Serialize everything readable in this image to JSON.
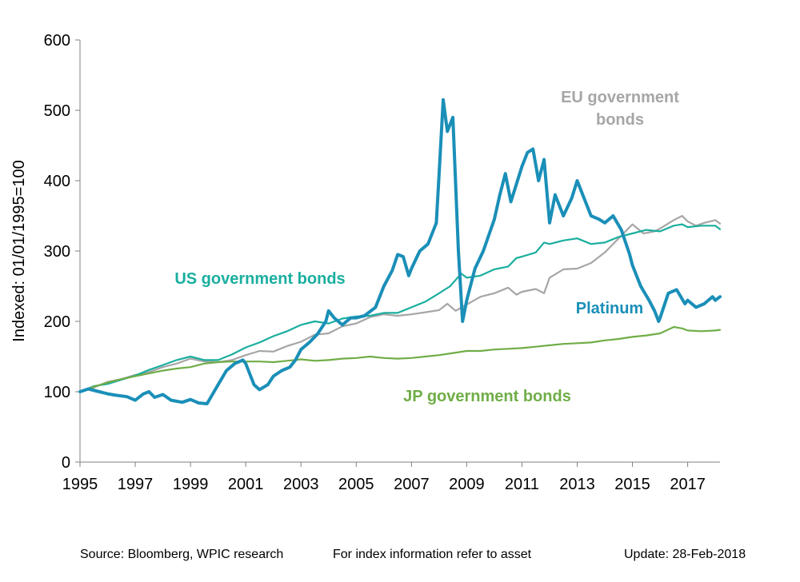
{
  "chart_data": {
    "type": "line",
    "ylabel": "Indexed: 01/01/1995=100",
    "xlabel": "",
    "ylim": [
      0,
      600
    ],
    "xlim": [
      1995,
      2018.17
    ],
    "yticks": [
      "0",
      "100",
      "200",
      "300",
      "400",
      "500",
      "600"
    ],
    "xticks": [
      "1995",
      "1997",
      "1999",
      "2001",
      "2003",
      "2005",
      "2007",
      "2009",
      "2011",
      "2013",
      "2015",
      "2017"
    ],
    "grid": false,
    "legend": "inline labels",
    "series": [
      {
        "name": "EU government bonds",
        "label_lines": [
          "EU government",
          "bonds"
        ],
        "color": "#A6A6A6",
        "points": [
          [
            1995,
            100
          ],
          [
            1995.5,
            106
          ],
          [
            1996,
            114
          ],
          [
            1996.5,
            118
          ],
          [
            1997,
            124
          ],
          [
            1997.5,
            128
          ],
          [
            1998,
            135
          ],
          [
            1998.5,
            140
          ],
          [
            1999,
            147
          ],
          [
            1999.5,
            143
          ],
          [
            2000,
            142
          ],
          [
            2000.5,
            145
          ],
          [
            2001,
            152
          ],
          [
            2001.5,
            158
          ],
          [
            2002,
            157
          ],
          [
            2002.5,
            165
          ],
          [
            2003,
            171
          ],
          [
            2003.5,
            181
          ],
          [
            2004,
            183
          ],
          [
            2004.5,
            193
          ],
          [
            2005,
            197
          ],
          [
            2005.5,
            206
          ],
          [
            2006,
            210
          ],
          [
            2006.5,
            208
          ],
          [
            2007,
            210
          ],
          [
            2007.5,
            213
          ],
          [
            2008,
            216
          ],
          [
            2008.3,
            225
          ],
          [
            2008.6,
            215
          ],
          [
            2009,
            224
          ],
          [
            2009.5,
            235
          ],
          [
            2010,
            240
          ],
          [
            2010.5,
            248
          ],
          [
            2010.8,
            238
          ],
          [
            2011,
            242
          ],
          [
            2011.5,
            246
          ],
          [
            2011.8,
            240
          ],
          [
            2012,
            262
          ],
          [
            2012.5,
            274
          ],
          [
            2013,
            275
          ],
          [
            2013.5,
            283
          ],
          [
            2014,
            298
          ],
          [
            2014.5,
            318
          ],
          [
            2015,
            338
          ],
          [
            2015.4,
            325
          ],
          [
            2015.8,
            328
          ],
          [
            2016,
            332
          ],
          [
            2016.5,
            344
          ],
          [
            2016.8,
            350
          ],
          [
            2017,
            342
          ],
          [
            2017.3,
            336
          ],
          [
            2017.6,
            340
          ],
          [
            2018,
            344
          ],
          [
            2018.17,
            339
          ]
        ]
      },
      {
        "name": "US government bonds",
        "label_lines": [
          "US government bonds"
        ],
        "color": "#1AAE9F",
        "points": [
          [
            1995,
            100
          ],
          [
            1995.5,
            108
          ],
          [
            1996,
            111
          ],
          [
            1996.5,
            117
          ],
          [
            1997,
            123
          ],
          [
            1997.5,
            131
          ],
          [
            1998,
            138
          ],
          [
            1998.5,
            145
          ],
          [
            1999,
            150
          ],
          [
            1999.5,
            145
          ],
          [
            2000,
            145
          ],
          [
            2000.5,
            153
          ],
          [
            2001,
            163
          ],
          [
            2001.5,
            170
          ],
          [
            2002,
            179
          ],
          [
            2002.5,
            186
          ],
          [
            2003,
            195
          ],
          [
            2003.5,
            200
          ],
          [
            2004,
            197
          ],
          [
            2004.5,
            204
          ],
          [
            2005,
            207
          ],
          [
            2005.5,
            208
          ],
          [
            2006,
            212
          ],
          [
            2006.5,
            212
          ],
          [
            2007,
            220
          ],
          [
            2007.5,
            228
          ],
          [
            2008,
            240
          ],
          [
            2008.4,
            250
          ],
          [
            2008.8,
            268
          ],
          [
            2009,
            262
          ],
          [
            2009.5,
            265
          ],
          [
            2010,
            274
          ],
          [
            2010.5,
            278
          ],
          [
            2010.8,
            290
          ],
          [
            2011,
            292
          ],
          [
            2011.5,
            298
          ],
          [
            2011.8,
            312
          ],
          [
            2012,
            310
          ],
          [
            2012.5,
            315
          ],
          [
            2013,
            318
          ],
          [
            2013.5,
            310
          ],
          [
            2014,
            312
          ],
          [
            2014.5,
            320
          ],
          [
            2015,
            325
          ],
          [
            2015.5,
            330
          ],
          [
            2016,
            328
          ],
          [
            2016.5,
            336
          ],
          [
            2016.8,
            338
          ],
          [
            2017,
            334
          ],
          [
            2017.5,
            336
          ],
          [
            2018,
            336
          ],
          [
            2018.17,
            331
          ]
        ]
      },
      {
        "name": "JP government bonds",
        "label_lines": [
          "JP government bonds"
        ],
        "color": "#70AD47",
        "points": [
          [
            1995,
            100
          ],
          [
            1995.5,
            107
          ],
          [
            1996,
            113
          ],
          [
            1996.5,
            118
          ],
          [
            1997,
            122
          ],
          [
            1997.5,
            126
          ],
          [
            1998,
            130
          ],
          [
            1998.5,
            133
          ],
          [
            1999,
            135
          ],
          [
            1999.5,
            140
          ],
          [
            2000,
            142
          ],
          [
            2000.5,
            143
          ],
          [
            2001,
            143
          ],
          [
            2001.5,
            143
          ],
          [
            2002,
            142
          ],
          [
            2002.5,
            144
          ],
          [
            2003,
            146
          ],
          [
            2003.5,
            144
          ],
          [
            2004,
            145
          ],
          [
            2004.5,
            147
          ],
          [
            2005,
            148
          ],
          [
            2005.5,
            150
          ],
          [
            2006,
            148
          ],
          [
            2006.5,
            147
          ],
          [
            2007,
            148
          ],
          [
            2007.5,
            150
          ],
          [
            2008,
            152
          ],
          [
            2008.5,
            155
          ],
          [
            2009,
            158
          ],
          [
            2009.5,
            158
          ],
          [
            2010,
            160
          ],
          [
            2010.5,
            161
          ],
          [
            2011,
            162
          ],
          [
            2011.5,
            164
          ],
          [
            2012,
            166
          ],
          [
            2012.5,
            168
          ],
          [
            2013,
            169
          ],
          [
            2013.5,
            170
          ],
          [
            2014,
            173
          ],
          [
            2014.5,
            175
          ],
          [
            2015,
            178
          ],
          [
            2015.5,
            180
          ],
          [
            2016,
            183
          ],
          [
            2016.5,
            192
          ],
          [
            2016.8,
            190
          ],
          [
            2017,
            187
          ],
          [
            2017.5,
            186
          ],
          [
            2018,
            187
          ],
          [
            2018.17,
            188
          ]
        ]
      },
      {
        "name": "Platinum",
        "label_lines": [
          "Platinum"
        ],
        "color": "#1A8FB8",
        "points": [
          [
            1995,
            100
          ],
          [
            1995.3,
            104
          ],
          [
            1995.7,
            100
          ],
          [
            1996,
            97
          ],
          [
            1996.3,
            95
          ],
          [
            1996.7,
            93
          ],
          [
            1997,
            88
          ],
          [
            1997.3,
            97
          ],
          [
            1997.5,
            100
          ],
          [
            1997.7,
            92
          ],
          [
            1998,
            96
          ],
          [
            1998.3,
            88
          ],
          [
            1998.7,
            85
          ],
          [
            1999,
            89
          ],
          [
            1999.3,
            84
          ],
          [
            1999.6,
            83
          ],
          [
            2000,
            110
          ],
          [
            2000.3,
            130
          ],
          [
            2000.6,
            140
          ],
          [
            2000.9,
            145
          ],
          [
            2001,
            140
          ],
          [
            2001.3,
            110
          ],
          [
            2001.5,
            103
          ],
          [
            2001.8,
            110
          ],
          [
            2002,
            122
          ],
          [
            2002.3,
            130
          ],
          [
            2002.6,
            135
          ],
          [
            2002.8,
            145
          ],
          [
            2003,
            160
          ],
          [
            2003.3,
            170
          ],
          [
            2003.6,
            182
          ],
          [
            2003.9,
            200
          ],
          [
            2004,
            215
          ],
          [
            2004.2,
            205
          ],
          [
            2004.5,
            195
          ],
          [
            2004.8,
            205
          ],
          [
            2005,
            205
          ],
          [
            2005.3,
            208
          ],
          [
            2005.7,
            220
          ],
          [
            2006,
            250
          ],
          [
            2006.3,
            272
          ],
          [
            2006.5,
            295
          ],
          [
            2006.7,
            292
          ],
          [
            2006.9,
            265
          ],
          [
            2007,
            275
          ],
          [
            2007.3,
            300
          ],
          [
            2007.6,
            310
          ],
          [
            2007.9,
            340
          ],
          [
            2008,
            410
          ],
          [
            2008.1,
            480
          ],
          [
            2008.15,
            515
          ],
          [
            2008.3,
            470
          ],
          [
            2008.5,
            490
          ],
          [
            2008.7,
            300
          ],
          [
            2008.85,
            200
          ],
          [
            2009,
            230
          ],
          [
            2009.3,
            275
          ],
          [
            2009.6,
            300
          ],
          [
            2010,
            345
          ],
          [
            2010.2,
            380
          ],
          [
            2010.4,
            410
          ],
          [
            2010.6,
            370
          ],
          [
            2010.8,
            395
          ],
          [
            2011,
            420
          ],
          [
            2011.2,
            440
          ],
          [
            2011.4,
            445
          ],
          [
            2011.6,
            400
          ],
          [
            2011.8,
            430
          ],
          [
            2012,
            340
          ],
          [
            2012.2,
            380
          ],
          [
            2012.5,
            350
          ],
          [
            2012.8,
            375
          ],
          [
            2013,
            400
          ],
          [
            2013.2,
            380
          ],
          [
            2013.5,
            350
          ],
          [
            2013.8,
            345
          ],
          [
            2014,
            340
          ],
          [
            2014.3,
            350
          ],
          [
            2014.6,
            330
          ],
          [
            2014.9,
            295
          ],
          [
            2015,
            280
          ],
          [
            2015.3,
            250
          ],
          [
            2015.6,
            230
          ],
          [
            2015.8,
            215
          ],
          [
            2015.95,
            200
          ],
          [
            2016,
            205
          ],
          [
            2016.3,
            240
          ],
          [
            2016.6,
            245
          ],
          [
            2016.9,
            225
          ],
          [
            2017,
            230
          ],
          [
            2017.3,
            220
          ],
          [
            2017.6,
            225
          ],
          [
            2017.9,
            235
          ],
          [
            2018,
            230
          ],
          [
            2018.17,
            235
          ]
        ]
      }
    ]
  },
  "footer": {
    "source": "Source: Bloomberg, WPIC research",
    "note": "For index information refer to asset",
    "update": "Update: 28-Feb-2018"
  }
}
